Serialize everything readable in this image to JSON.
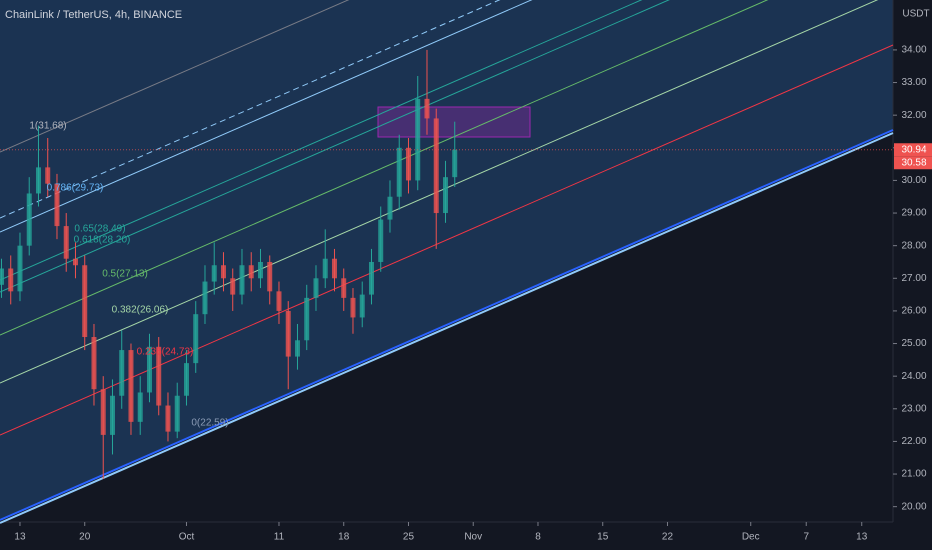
{
  "chart_data": {
    "type": "candlestick",
    "title": "ChainLink / TetherUS, 4h, BINANCE",
    "y_axis_label": "USDT",
    "x": [
      -2,
      -1,
      0,
      1,
      2,
      3,
      4,
      5,
      6,
      7,
      8,
      9,
      10,
      11,
      12,
      13,
      14,
      15,
      16,
      17,
      18,
      19,
      20,
      21,
      22,
      23,
      24,
      25,
      26,
      27,
      28,
      29,
      30,
      31,
      32,
      33,
      34,
      35,
      36,
      37,
      38,
      39,
      40,
      41,
      42,
      43,
      44,
      45,
      46,
      47
    ],
    "open": [
      26.8,
      27.3,
      26.6,
      28.0,
      29.6,
      30.4,
      29.9,
      28.6,
      27.6,
      27.4,
      25.2,
      23.6,
      22.2,
      23.4,
      24.8,
      22.6,
      23.5,
      24.9,
      23.1,
      22.3,
      23.4,
      24.4,
      25.9,
      26.9,
      27.4,
      27.0,
      26.5,
      27.4,
      27.0,
      27.5,
      26.6,
      26.0,
      24.6,
      25.1,
      26.4,
      27.0,
      27.6,
      27.0,
      26.4,
      25.8,
      26.5,
      27.5,
      28.8,
      29.5,
      31.0,
      30.0,
      32.5,
      31.9,
      29.0,
      30.1
    ],
    "high": [
      27.6,
      27.7,
      28.4,
      30.1,
      31.68,
      31.3,
      30.2,
      29.0,
      28.1,
      27.7,
      25.6,
      24.0,
      23.9,
      25.4,
      25.0,
      24.0,
      25.3,
      25.2,
      23.5,
      23.8,
      24.8,
      26.3,
      27.4,
      28.1,
      27.8,
      27.3,
      27.9,
      27.8,
      27.9,
      27.7,
      26.9,
      26.3,
      25.6,
      26.8,
      27.4,
      28.5,
      27.9,
      27.3,
      26.7,
      26.9,
      27.9,
      29.2,
      30.0,
      31.4,
      31.3,
      33.2,
      34.0,
      32.2,
      30.6,
      31.8
    ],
    "low": [
      26.4,
      26.2,
      26.3,
      27.7,
      29.2,
      29.5,
      28.2,
      27.2,
      27.0,
      24.8,
      23.1,
      20.85,
      21.6,
      23.0,
      22.2,
      22.2,
      23.2,
      22.8,
      22.0,
      22.1,
      23.1,
      24.1,
      25.6,
      26.5,
      26.6,
      26.0,
      26.2,
      26.6,
      26.7,
      26.2,
      25.6,
      23.6,
      24.2,
      24.8,
      26.0,
      26.7,
      26.6,
      26.0,
      25.3,
      25.5,
      26.2,
      27.2,
      28.4,
      29.1,
      29.6,
      29.7,
      31.4,
      27.9,
      28.7,
      29.8
    ],
    "close": [
      27.3,
      26.6,
      28.0,
      29.6,
      30.4,
      29.9,
      28.6,
      27.6,
      27.4,
      25.2,
      23.6,
      22.2,
      23.4,
      24.8,
      22.6,
      23.5,
      24.9,
      23.1,
      22.3,
      23.4,
      24.4,
      25.9,
      26.9,
      27.4,
      27.0,
      26.5,
      27.4,
      27.0,
      27.5,
      26.6,
      26.0,
      24.6,
      25.1,
      26.4,
      27.0,
      27.6,
      27.0,
      26.4,
      25.8,
      26.5,
      27.5,
      28.8,
      29.5,
      31.0,
      30.0,
      32.5,
      31.9,
      29.0,
      30.1,
      30.94
    ],
    "up_color": "#26a69a",
    "down_color": "#ef5350",
    "xlim": [
      -2.16,
      94.38
    ],
    "ylim": [
      19.53,
      35.53
    ],
    "xticks": [
      {
        "value": 0,
        "label": "13"
      },
      {
        "value": 7,
        "label": "20"
      },
      {
        "value": 18,
        "label": "Oct"
      },
      {
        "value": 28,
        "label": "11"
      },
      {
        "value": 35,
        "label": "18"
      },
      {
        "value": 42,
        "label": "25"
      },
      {
        "value": 49,
        "label": "Nov"
      },
      {
        "value": 56,
        "label": "8"
      },
      {
        "value": 63,
        "label": "15"
      },
      {
        "value": 70,
        "label": "22"
      },
      {
        "value": 79,
        "label": "Dec"
      },
      {
        "value": 85,
        "label": "7"
      },
      {
        "value": 91,
        "label": "13"
      }
    ],
    "yticks": [
      {
        "value": 20,
        "label": "20.00"
      },
      {
        "value": 21,
        "label": "21.00"
      },
      {
        "value": 22,
        "label": "22.00"
      },
      {
        "value": 23,
        "label": "23.00"
      },
      {
        "value": 24,
        "label": "24.00"
      },
      {
        "value": 25,
        "label": "25.00"
      },
      {
        "value": 26,
        "label": "26.00"
      },
      {
        "value": 27,
        "label": "27.00"
      },
      {
        "value": 28,
        "label": "28.00"
      },
      {
        "value": 29,
        "label": "29.00"
      },
      {
        "value": 30,
        "label": "30.00"
      },
      {
        "value": 31,
        "label": "31.00"
      },
      {
        "value": 32,
        "label": "32.00"
      },
      {
        "value": 33,
        "label": "33.00"
      },
      {
        "value": 34,
        "label": "34.00"
      }
    ],
    "price_labels": [
      30.94,
      30.58
    ],
    "annotations": [
      {
        "text": "1(31.68)",
        "color": "#b2b5be"
      },
      {
        "text": "0.786(29.73)",
        "color": "#64b5f6"
      },
      {
        "text": "0.65(28.49)",
        "color": "#26a69a"
      },
      {
        "text": "0.618(28.20)",
        "color": "#26a69a"
      },
      {
        "text": "0.5(27.13)",
        "color": "#66bb6a"
      },
      {
        "text": "0.382(26.06)",
        "color": "#a5d6a7"
      },
      {
        "text": "0.236(24.73)",
        "color": "#f23645"
      },
      {
        "text": "0(22.59)",
        "color": "#8a9bb5"
      }
    ]
  }
}
